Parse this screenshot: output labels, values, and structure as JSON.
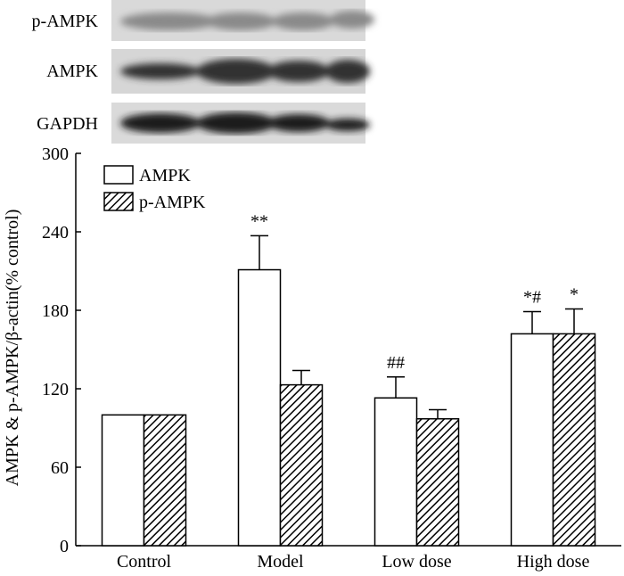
{
  "blot": {
    "labels": [
      "p-AMPK",
      "AMPK",
      "GAPDH"
    ]
  },
  "chart_data": {
    "type": "bar",
    "y_label": "AMPK & p-AMPK/β-actin(% control)",
    "categories": [
      "Control",
      "Model",
      "Low dose",
      "High dose"
    ],
    "series": [
      {
        "name": "AMPK",
        "color": "#ffffff",
        "hatch": false,
        "values": [
          100,
          211,
          113,
          162
        ],
        "errors": [
          0,
          26,
          16,
          17
        ],
        "annotations": [
          null,
          "**",
          "##",
          "*#"
        ]
      },
      {
        "name": "p-AMPK",
        "color": "#ffffff",
        "hatch": true,
        "values": [
          100,
          123,
          97,
          162
        ],
        "errors": [
          0,
          11,
          7,
          19
        ],
        "annotations": [
          null,
          null,
          null,
          "*"
        ]
      }
    ],
    "ylim": [
      0,
      300
    ],
    "yticks": [
      0,
      60,
      120,
      180,
      240,
      300
    ],
    "grid": false,
    "legend": "top-left"
  }
}
